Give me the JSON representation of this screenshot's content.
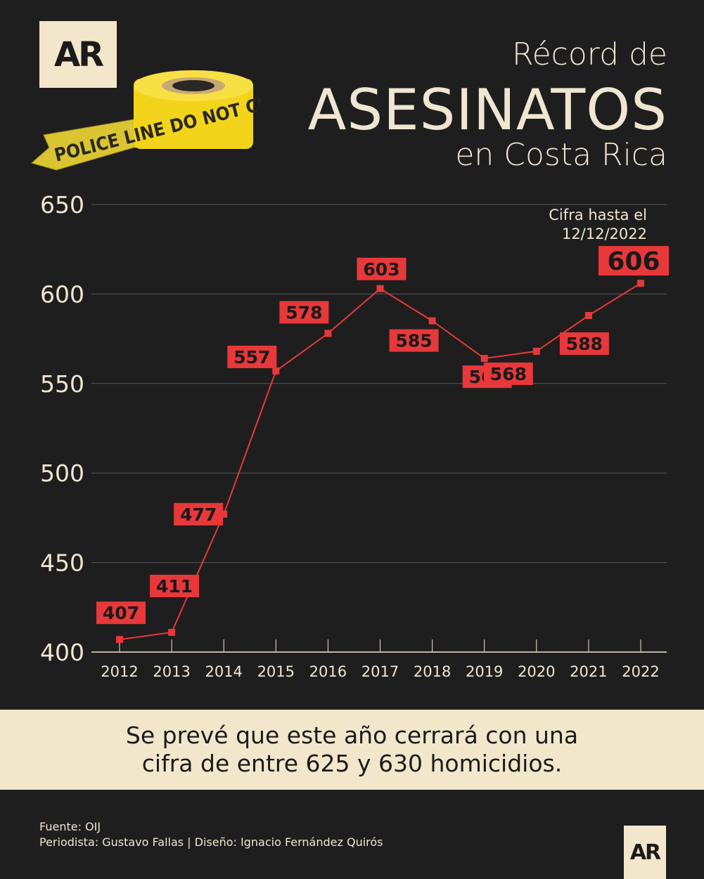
{
  "brand": {
    "logo_text": "AR",
    "tape_text": "POLICE LINE DO NOT CROSS"
  },
  "title": {
    "line1": "Récord de",
    "line2": "ASESINATOS",
    "line3": "en Costa Rica"
  },
  "chart_data": {
    "type": "line",
    "categories": [
      "2012",
      "2013",
      "2014",
      "2015",
      "2016",
      "2017",
      "2018",
      "2019",
      "2020",
      "2021",
      "2022"
    ],
    "values": [
      407,
      411,
      477,
      557,
      578,
      603,
      585,
      564,
      568,
      588,
      606
    ],
    "y_ticks": [
      400,
      450,
      500,
      550,
      600,
      650
    ],
    "ylim": [
      400,
      650
    ],
    "grid": true,
    "annotation": {
      "line1": "Cifra hasta el",
      "line2": "12/12/2022"
    },
    "colors": {
      "line": "#e8383a",
      "label_bg": "#e8383a",
      "grid": "#5a5757",
      "text": "#efe6d2"
    }
  },
  "banner": {
    "line1": "Se prevé que este año cerrará con una",
    "line2": "cifra de entre 625 y 630 homicidios."
  },
  "credits": {
    "source": "Fuente: OIJ",
    "authors": "Periodista: Gustavo Fallas | Diseño: Ignacio Fernández Quirós"
  }
}
